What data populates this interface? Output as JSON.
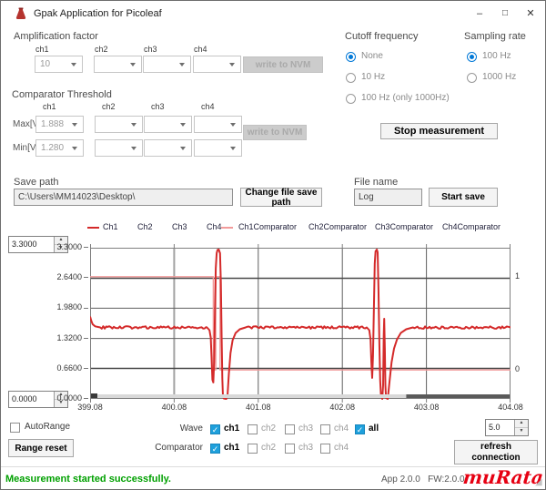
{
  "window": {
    "title": "Gpak Application for Picoleaf"
  },
  "amplification": {
    "label": "Amplification factor",
    "channels": [
      "ch1",
      "ch2",
      "ch3",
      "ch4"
    ],
    "values": [
      "10",
      "",
      "",
      ""
    ],
    "write_nvm": "write to NVM"
  },
  "cutoff": {
    "label": "Cutoff frequency",
    "options": [
      {
        "label": "None",
        "selected": true
      },
      {
        "label": "10 Hz",
        "selected": false
      },
      {
        "label": "100 Hz (only 1000Hz)",
        "selected": false
      }
    ]
  },
  "sampling": {
    "label": "Sampling rate",
    "options": [
      {
        "label": "100 Hz",
        "selected": true
      },
      {
        "label": "1000 Hz",
        "selected": false
      }
    ]
  },
  "comparator_threshold": {
    "label": "Comparator Threshold",
    "channels": [
      "ch1",
      "ch2",
      "ch3",
      "ch4"
    ],
    "max_label": "Max[V]",
    "min_label": "Min[V]",
    "max_values": [
      "1.888",
      "",
      "",
      ""
    ],
    "min_values": [
      "1.280",
      "",
      "",
      ""
    ],
    "write_nvm": "write to NVM"
  },
  "stop_button": "Stop measurement",
  "save": {
    "path_label": "Save path",
    "path_value": "C:\\Users\\MM14023\\Desktop\\",
    "change_button": "Change file save path",
    "file_label": "File name",
    "file_value": "Log",
    "start_button": "Start save"
  },
  "controls": {
    "top_spinner": "3.3000",
    "bottom_spinner": "0.0000",
    "right_spinner": "5.0",
    "autorange_label": "AutoRange",
    "autorange_checked": false,
    "range_reset": "Range reset",
    "wave_label": "Wave",
    "wave_items": [
      {
        "label": "ch1",
        "checked": true
      },
      {
        "label": "ch2",
        "checked": false
      },
      {
        "label": "ch3",
        "checked": false
      },
      {
        "label": "ch4",
        "checked": false
      },
      {
        "label": "all",
        "checked": true
      }
    ],
    "comparator_label": "Comparator",
    "comparator_items": [
      {
        "label": "ch1",
        "checked": true
      },
      {
        "label": "ch2",
        "checked": false
      },
      {
        "label": "ch3",
        "checked": false
      },
      {
        "label": "ch4",
        "checked": false
      }
    ],
    "refresh_button": "refresh\nconnection"
  },
  "status": {
    "message": "Measurement started successfully.",
    "versions": "App 2.0.0   FW:2.0.0",
    "logo": "muRata"
  },
  "chart_data": {
    "type": "line",
    "x_axis": {
      "min": 399.08,
      "max": 404.08,
      "tick_labels": [
        "399.08",
        "400.08",
        "401.08",
        "402.08",
        "403.08",
        "404.08"
      ]
    },
    "y_axis_left": {
      "min": 0,
      "max": 3.3,
      "tick_labels": [
        "0.0000",
        "0.6600",
        "1.3200",
        "1.9800",
        "2.6400",
        "3.3000"
      ]
    },
    "y_axis_right": {
      "min": -0.31,
      "max": 1.31,
      "ticks": [
        {
          "value": 1,
          "label": "1"
        },
        {
          "value": 0,
          "label": "0"
        }
      ]
    },
    "legend": [
      {
        "label": "Ch1",
        "color": "#d42a2a",
        "line": true
      },
      {
        "label": "Ch2",
        "line": false
      },
      {
        "label": "Ch3",
        "line": false
      },
      {
        "label": "Ch4",
        "line": false
      },
      {
        "label": "Ch1Comparator",
        "color": "#f29b9b",
        "line": true
      },
      {
        "label": "Ch2Comparator",
        "line": false
      },
      {
        "label": "Ch3Comparator",
        "line": false
      },
      {
        "label": "Ch4Comparator",
        "line": false
      }
    ],
    "series": [
      {
        "name": "Ch1Comparator",
        "axis": "right",
        "color": "#f29b9b",
        "width": 1.4,
        "anchors": [
          [
            399.08,
            1
          ],
          [
            400.545,
            1
          ],
          [
            400.545,
            0
          ],
          [
            400.575,
            0
          ],
          [
            400.575,
            1
          ],
          [
            400.625,
            1
          ],
          [
            400.625,
            0
          ],
          [
            404.08,
            0
          ]
        ]
      },
      {
        "name": "Ch1",
        "axis": "left",
        "color": "#d42a2a",
        "width": 2,
        "baseline": 1.56,
        "noise_amp": 0.055,
        "anchors": [
          [
            399.08,
            1.8
          ],
          [
            399.095,
            1.7
          ],
          [
            399.11,
            1.63
          ],
          [
            399.14,
            1.585
          ],
          [
            399.2,
            1.56
          ],
          [
            400.47,
            1.56
          ],
          [
            400.5,
            1.5
          ],
          [
            400.515,
            1.34
          ],
          [
            400.525,
            0.9
          ],
          [
            400.535,
            0.42
          ],
          [
            400.545,
            0.36
          ],
          [
            400.555,
            0.8
          ],
          [
            400.565,
            1.9
          ],
          [
            400.575,
            2.85
          ],
          [
            400.585,
            3.18
          ],
          [
            400.595,
            3.25
          ],
          [
            400.61,
            3.26
          ],
          [
            400.625,
            3.18
          ],
          [
            400.635,
            2.55
          ],
          [
            400.645,
            1.3
          ],
          [
            400.652,
            0.45
          ],
          [
            400.66,
            0.06
          ],
          [
            400.67,
            0.01
          ],
          [
            400.7,
            0
          ],
          [
            400.715,
            0.1
          ],
          [
            400.73,
            0.55
          ],
          [
            400.75,
            1
          ],
          [
            400.775,
            1.28
          ],
          [
            400.81,
            1.44
          ],
          [
            400.86,
            1.52
          ],
          [
            400.93,
            1.56
          ],
          [
            402.37,
            1.56
          ],
          [
            402.4,
            1.5
          ],
          [
            402.415,
            1.3
          ],
          [
            402.425,
            0.8
          ],
          [
            402.435,
            0.46
          ],
          [
            402.445,
            0.95
          ],
          [
            402.455,
            2
          ],
          [
            402.465,
            2.95
          ],
          [
            402.475,
            3.22
          ],
          [
            402.49,
            3.26
          ],
          [
            402.5,
            3.2
          ],
          [
            402.51,
            2.4
          ],
          [
            402.52,
            1.2
          ],
          [
            402.53,
            0.4
          ],
          [
            402.54,
            0.05
          ],
          [
            402.555,
            0
          ],
          [
            402.565,
            0.3
          ],
          [
            402.572,
            1.4
          ],
          [
            402.578,
            1.75
          ],
          [
            402.585,
            1.1
          ],
          [
            402.592,
            0.3
          ],
          [
            402.6,
            0.02
          ],
          [
            402.62,
            0
          ],
          [
            402.64,
            0.35
          ],
          [
            402.665,
            0.8
          ],
          [
            402.695,
            1.1
          ],
          [
            402.73,
            1.3
          ],
          [
            402.775,
            1.44
          ],
          [
            402.84,
            1.52
          ],
          [
            402.92,
            1.56
          ],
          [
            404.08,
            1.56
          ]
        ]
      }
    ],
    "scrollbar": {
      "handle_from": 402.84,
      "handle_to": 404.08
    }
  }
}
